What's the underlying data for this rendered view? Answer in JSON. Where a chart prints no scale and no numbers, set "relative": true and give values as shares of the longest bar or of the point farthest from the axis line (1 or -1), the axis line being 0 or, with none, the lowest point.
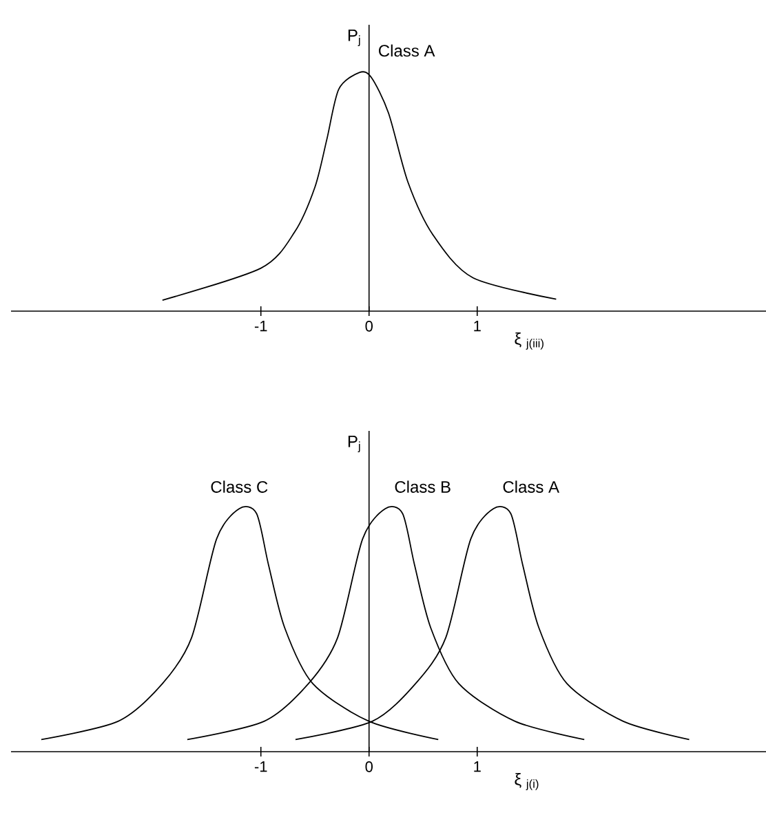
{
  "chart_data": [
    {
      "type": "line",
      "relative": true,
      "ylabel": "P$_{j}$",
      "xlabel": "ξ $_{j(iii)}$",
      "xlim": [
        -3.31,
        3.67
      ],
      "xticks": [
        -1,
        0,
        1
      ],
      "series": [
        {
          "name": "Class A",
          "color": "#000000",
          "x": [
            -1.91,
            -1.0,
            -0.69,
            -0.5,
            -0.39,
            -0.28,
            -0.09,
            0.02,
            0.18,
            0.36,
            0.59,
            0.96,
            1.73
          ],
          "values": [
            0.046,
            0.18,
            0.33,
            0.52,
            0.72,
            0.93,
            1.0,
            0.98,
            0.83,
            0.54,
            0.32,
            0.14,
            0.05
          ]
        }
      ]
    },
    {
      "type": "line",
      "relative": true,
      "ylabel": "P$_{j}$",
      "xlabel": "ξ $_{j(i)}$",
      "xlim": [
        -3.31,
        3.67
      ],
      "xticks": [
        -1,
        0,
        1
      ],
      "series": [
        {
          "name": "Class C",
          "color": "#000000",
          "x": [
            -3.03,
            -2.32,
            -1.91,
            -1.64,
            -1.41,
            -1.2,
            -1.04,
            -0.93,
            -0.78,
            -0.52,
            0.0,
            0.64
          ],
          "values": [
            0.05,
            0.125,
            0.28,
            0.47,
            0.875,
            1.0,
            0.98,
            0.77,
            0.51,
            0.28,
            0.125,
            0.05
          ]
        },
        {
          "name": "Class B",
          "color": "#000000",
          "x": [
            -1.68,
            -0.97,
            -0.56,
            -0.29,
            -0.06,
            0.15,
            0.31,
            0.42,
            0.57,
            0.83,
            1.35,
            1.99
          ],
          "values": [
            0.05,
            0.125,
            0.28,
            0.47,
            0.875,
            1.0,
            0.98,
            0.77,
            0.51,
            0.28,
            0.125,
            0.05
          ]
        },
        {
          "name": "Class A",
          "color": "#000000",
          "x": [
            -0.68,
            0.03,
            0.43,
            0.71,
            0.94,
            1.15,
            1.31,
            1.42,
            1.57,
            1.83,
            2.35,
            2.96
          ],
          "values": [
            0.05,
            0.125,
            0.28,
            0.47,
            0.875,
            1.0,
            0.98,
            0.77,
            0.51,
            0.28,
            0.125,
            0.05
          ]
        }
      ]
    }
  ]
}
